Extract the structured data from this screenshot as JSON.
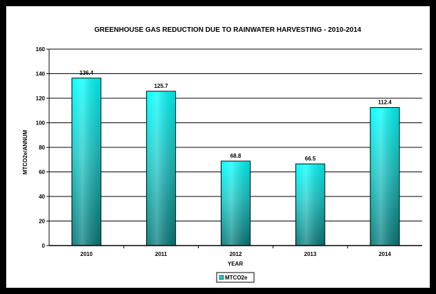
{
  "chart_data": {
    "type": "bar",
    "title": "GREENHOUSE GAS REDUCTION DUE TO RAINWATER HARVESTING - 2010-2014",
    "xlabel": "YEAR",
    "ylabel": "MTCO2e/ANNUM",
    "categories": [
      "2010",
      "2011",
      "2012",
      "2013",
      "2014"
    ],
    "series": [
      {
        "name": "MTCO2e",
        "values": [
          136.4,
          125.7,
          68.8,
          66.5,
          112.4
        ]
      }
    ],
    "data_labels": [
      "136.4",
      "125.7",
      "68.8",
      "66.5",
      "112.4"
    ],
    "ylim": [
      0,
      160
    ],
    "yticks": [
      0,
      20,
      40,
      60,
      80,
      100,
      120,
      140,
      160
    ],
    "grid": true,
    "legend_position": "bottom-center",
    "colors": {
      "bar_top": "#00ffff",
      "bar_mid": "#1ec8c8",
      "bar_bottom": "#0a7a7a",
      "grid": "#000000"
    }
  }
}
